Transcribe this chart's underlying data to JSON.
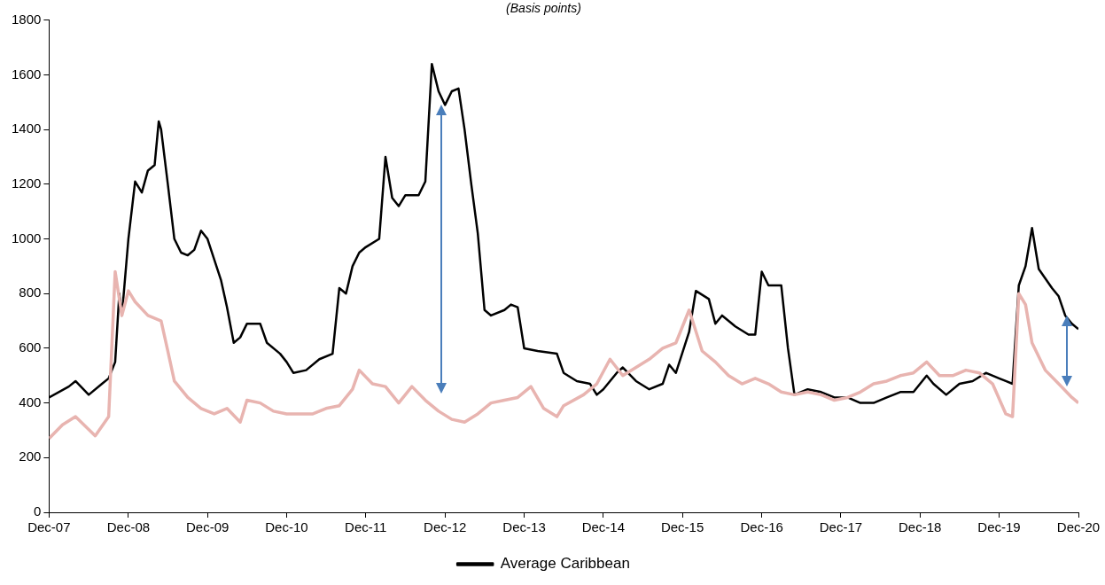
{
  "chart_data": {
    "type": "line",
    "title": "(Basis points)",
    "ylim": [
      0,
      1800
    ],
    "yticks": [
      0,
      200,
      400,
      600,
      800,
      1000,
      1200,
      1400,
      1600,
      1800
    ],
    "xlim": [
      "2007-12",
      "2020-12"
    ],
    "xticks": [
      {
        "value": "2007-12",
        "label": "Dec-07"
      },
      {
        "value": "2008-12",
        "label": "Dec-08"
      },
      {
        "value": "2009-12",
        "label": "Dec-09"
      },
      {
        "value": "2010-12",
        "label": "Dec-10"
      },
      {
        "value": "2011-12",
        "label": "Dec-11"
      },
      {
        "value": "2012-12",
        "label": "Dec-12"
      },
      {
        "value": "2013-12",
        "label": "Dec-13"
      },
      {
        "value": "2014-12",
        "label": "Dec-14"
      },
      {
        "value": "2015-12",
        "label": "Dec-15"
      },
      {
        "value": "2016-12",
        "label": "Dec-16"
      },
      {
        "value": "2017-12",
        "label": "Dec-17"
      },
      {
        "value": "2018-12",
        "label": "Dec-18"
      },
      {
        "value": "2019-12",
        "label": "Dec-19"
      },
      {
        "value": "2020-12",
        "label": "Dec-20"
      }
    ],
    "grid": false,
    "legend": "bottom",
    "marker": "none",
    "line_style": "solid",
    "series": [
      {
        "color": "#e8b4b0",
        "x": [
          "2007-12",
          "2008-02",
          "2008-04",
          "2008-07",
          "2008-09",
          "2008-10",
          "2008-11",
          "2008-12",
          "2009-01",
          "2009-03",
          "2009-05",
          "2009-06",
          "2009-07",
          "2009-09",
          "2009-11",
          "2010-01",
          "2010-03",
          "2010-05",
          "2010-06",
          "2010-08",
          "2010-10",
          "2010-12",
          "2011-02",
          "2011-04",
          "2011-06",
          "2011-08",
          "2011-10",
          "2011-11",
          "2012-01",
          "2012-03",
          "2012-05",
          "2012-07",
          "2012-09",
          "2012-11",
          "2013-01",
          "2013-03",
          "2013-05",
          "2013-07",
          "2013-09",
          "2013-11",
          "2014-01",
          "2014-03",
          "2014-05",
          "2014-06",
          "2014-09",
          "2014-11",
          "2015-01",
          "2015-03",
          "2015-05",
          "2015-07",
          "2015-09",
          "2015-11",
          "2016-01",
          "2016-03",
          "2016-05",
          "2016-07",
          "2016-09",
          "2016-11",
          "2017-01",
          "2017-03",
          "2017-05",
          "2017-07",
          "2017-09",
          "2017-11",
          "2018-01",
          "2018-03",
          "2018-05",
          "2018-07",
          "2018-09",
          "2018-11",
          "2019-01",
          "2019-03",
          "2019-05",
          "2019-07",
          "2019-09",
          "2019-11",
          "2020-01",
          "2020-02",
          "2020-03",
          "2020-04",
          "2020-05",
          "2020-07",
          "2020-09",
          "2020-11",
          "2020-12"
        ],
        "values": [
          270,
          320,
          350,
          280,
          350,
          880,
          720,
          810,
          770,
          720,
          700,
          590,
          480,
          420,
          380,
          360,
          380,
          330,
          410,
          400,
          370,
          360,
          360,
          360,
          380,
          390,
          450,
          520,
          470,
          460,
          400,
          460,
          410,
          370,
          340,
          330,
          360,
          400,
          410,
          420,
          460,
          380,
          350,
          390,
          430,
          470,
          560,
          500,
          530,
          560,
          600,
          620,
          740,
          590,
          550,
          500,
          470,
          490,
          470,
          440,
          430,
          440,
          430,
          410,
          420,
          440,
          470,
          480,
          500,
          510,
          550,
          500,
          500,
          520,
          510,
          470,
          360,
          350,
          800,
          760,
          620,
          520,
          470,
          420,
          400
        ]
      },
      {
        "name": "Average Caribbean",
        "color": "#000000",
        "x": [
          "2007-12",
          "2008-03",
          "2008-04",
          "2008-06",
          "2008-08",
          "2008-09",
          "2008-10",
          "2008-10-20",
          "2008-11",
          "2008-12",
          "2009-01",
          "2009-02",
          "2009-03",
          "2009-04",
          "2009-04-20",
          "2009-05",
          "2009-06",
          "2009-07",
          "2009-08",
          "2009-09",
          "2009-10",
          "2009-11",
          "2009-12",
          "2010-02",
          "2010-03",
          "2010-04",
          "2010-05",
          "2010-06",
          "2010-08",
          "2010-09",
          "2010-11",
          "2010-12",
          "2011-01",
          "2011-03",
          "2011-05",
          "2011-07",
          "2011-08",
          "2011-09",
          "2011-10",
          "2011-11",
          "2011-12",
          "2012-02",
          "2012-03",
          "2012-04",
          "2012-05",
          "2012-06",
          "2012-08",
          "2012-09",
          "2012-10",
          "2012-11",
          "2012-12",
          "2013-01",
          "2013-02",
          "2013-03",
          "2013-04",
          "2013-05",
          "2013-06",
          "2013-07",
          "2013-09",
          "2013-10",
          "2013-11",
          "2013-12",
          "2014-02",
          "2014-05",
          "2014-06",
          "2014-08",
          "2014-10",
          "2014-11",
          "2014-12",
          "2015-02",
          "2015-03",
          "2015-05",
          "2015-07",
          "2015-09",
          "2015-10",
          "2015-11",
          "2016-01",
          "2016-02",
          "2016-04",
          "2016-05",
          "2016-06",
          "2016-08",
          "2016-10",
          "2016-11",
          "2016-12",
          "2017-01",
          "2017-03",
          "2017-04",
          "2017-05",
          "2017-07",
          "2017-09",
          "2017-11",
          "2018-01",
          "2018-03",
          "2018-05",
          "2018-07",
          "2018-09",
          "2018-11",
          "2019-01",
          "2019-02",
          "2019-04",
          "2019-06",
          "2019-08",
          "2019-10",
          "2019-12",
          "2020-01",
          "2020-02",
          "2020-03",
          "2020-04",
          "2020-05",
          "2020-06",
          "2020-08",
          "2020-09",
          "2020-10",
          "2020-11",
          "2020-12"
        ],
        "values": [
          420,
          460,
          480,
          430,
          470,
          490,
          550,
          800,
          720,
          1000,
          1210,
          1170,
          1250,
          1270,
          1430,
          1400,
          1200,
          1000,
          950,
          940,
          960,
          1030,
          1000,
          850,
          750,
          620,
          640,
          690,
          690,
          620,
          580,
          550,
          510,
          520,
          560,
          580,
          820,
          800,
          900,
          950,
          970,
          1000,
          1300,
          1150,
          1120,
          1160,
          1160,
          1210,
          1640,
          1540,
          1490,
          1540,
          1550,
          1400,
          1200,
          1020,
          740,
          720,
          740,
          760,
          750,
          600,
          590,
          580,
          510,
          480,
          470,
          430,
          450,
          510,
          530,
          480,
          450,
          470,
          540,
          510,
          660,
          810,
          780,
          690,
          720,
          680,
          650,
          650,
          880,
          830,
          830,
          600,
          430,
          450,
          440,
          420,
          420,
          400,
          400,
          420,
          440,
          440,
          500,
          470,
          430,
          470,
          480,
          510,
          490,
          480,
          470,
          830,
          900,
          1040,
          890,
          820,
          790,
          720,
          690,
          670
        ]
      }
    ]
  }
}
